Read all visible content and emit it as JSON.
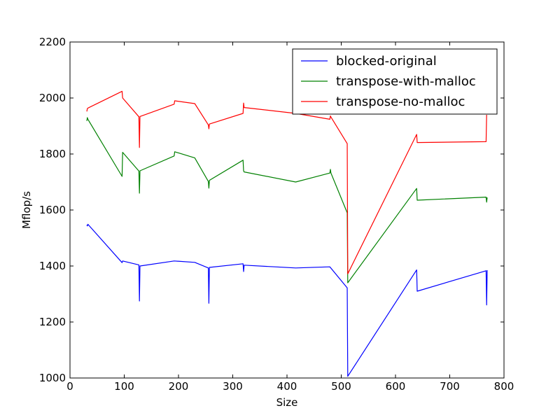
{
  "chart_data": {
    "type": "line",
    "title": "",
    "xlabel": "Size",
    "ylabel": "Mflop/s",
    "xlim": [
      0,
      800
    ],
    "ylim": [
      1000,
      2200
    ],
    "xticks": [
      0,
      100,
      200,
      300,
      400,
      500,
      600,
      700,
      800
    ],
    "yticks": [
      1000,
      1200,
      1400,
      1600,
      1800,
      2000,
      2200
    ],
    "grid": false,
    "legend_position": "top-right",
    "series": [
      {
        "name": "blocked-original",
        "color": "#0000ff",
        "points": [
          [
            31,
            1547
          ],
          [
            32,
            1543
          ],
          [
            33,
            1549
          ],
          [
            96,
            1412
          ],
          [
            97,
            1418
          ],
          [
            127,
            1404
          ],
          [
            128,
            1275
          ],
          [
            129,
            1400
          ],
          [
            192,
            1418
          ],
          [
            230,
            1413
          ],
          [
            255,
            1393
          ],
          [
            256,
            1267
          ],
          [
            257,
            1395
          ],
          [
            319,
            1408
          ],
          [
            320,
            1380
          ],
          [
            321,
            1403
          ],
          [
            416,
            1393
          ],
          [
            479,
            1397
          ],
          [
            511,
            1322
          ],
          [
            512,
            1006
          ],
          [
            639,
            1386
          ],
          [
            640,
            1310
          ],
          [
            767,
            1383
          ],
          [
            768,
            1261
          ],
          [
            769,
            1385
          ]
        ]
      },
      {
        "name": "transpose-with-malloc",
        "color": "#008000",
        "points": [
          [
            31,
            1918
          ],
          [
            32,
            1930
          ],
          [
            33,
            1924
          ],
          [
            96,
            1720
          ],
          [
            97,
            1806
          ],
          [
            127,
            1739
          ],
          [
            128,
            1660
          ],
          [
            129,
            1740
          ],
          [
            192,
            1793
          ],
          [
            193,
            1808
          ],
          [
            230,
            1786
          ],
          [
            255,
            1702
          ],
          [
            256,
            1678
          ],
          [
            257,
            1706
          ],
          [
            319,
            1778
          ],
          [
            320,
            1740
          ],
          [
            321,
            1736
          ],
          [
            416,
            1700
          ],
          [
            479,
            1732
          ],
          [
            480,
            1745
          ],
          [
            481,
            1732
          ],
          [
            511,
            1590
          ],
          [
            512,
            1340
          ],
          [
            639,
            1677
          ],
          [
            640,
            1635
          ],
          [
            767,
            1646
          ],
          [
            768,
            1628
          ],
          [
            769,
            1645
          ]
        ]
      },
      {
        "name": "transpose-no-malloc",
        "color": "#ff0000",
        "points": [
          [
            31,
            1952
          ],
          [
            32,
            1962
          ],
          [
            33,
            1964
          ],
          [
            96,
            2024
          ],
          [
            97,
            2000
          ],
          [
            127,
            1933
          ],
          [
            128,
            1823
          ],
          [
            129,
            1934
          ],
          [
            192,
            1978
          ],
          [
            193,
            1990
          ],
          [
            230,
            1980
          ],
          [
            255,
            1904
          ],
          [
            256,
            1890
          ],
          [
            257,
            1907
          ],
          [
            319,
            1945
          ],
          [
            320,
            1982
          ],
          [
            321,
            1966
          ],
          [
            416,
            1945
          ],
          [
            479,
            1924
          ],
          [
            480,
            1936
          ],
          [
            481,
            1932
          ],
          [
            511,
            1837
          ],
          [
            512,
            1372
          ],
          [
            639,
            1870
          ],
          [
            640,
            1841
          ],
          [
            767,
            1844
          ],
          [
            768,
            1940
          ]
        ]
      }
    ]
  }
}
